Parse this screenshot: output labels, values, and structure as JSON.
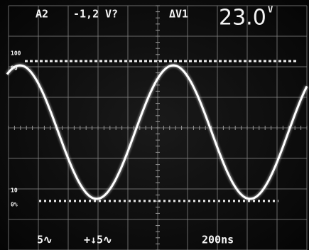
{
  "readouts": {
    "channel": "A2",
    "offset": "-1,2",
    "offset_unit": "V?",
    "cursor_mode": "ΔV1",
    "cursor_value": "23.0",
    "cursor_unit": "V"
  },
  "scale_labels": [
    "100",
    "90",
    "10",
    "0%"
  ],
  "bottom": {
    "ch1_scale": "5∿",
    "ch2_scale": "+↓5∿",
    "timebase": "200ns"
  }
}
